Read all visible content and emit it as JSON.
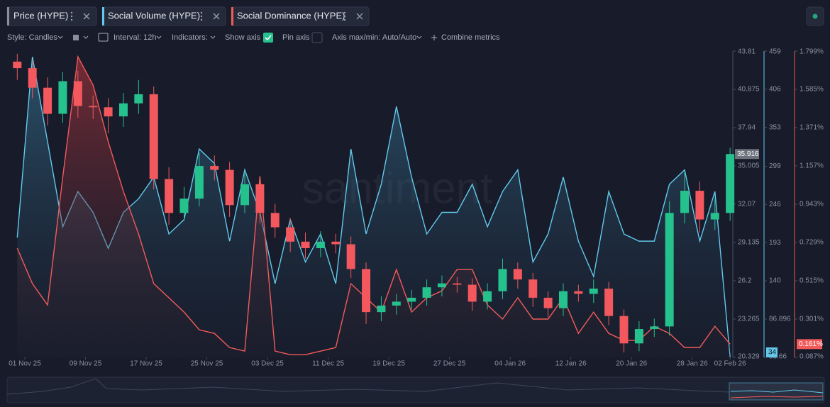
{
  "toolbar": {
    "style": "Style: Candles",
    "interval": "Interval: 12h",
    "indicators": "Indicators:",
    "show_axis": "Show axis",
    "pin_axis": "Pin axis",
    "axis_minmax": "Axis max/min: Auto/Auto",
    "combine": "Combine metrics"
  },
  "watermark": "santiment",
  "chart_data": {
    "type": "combo",
    "x": [
      "2025-10-31",
      "2025-11-02",
      "2025-11-04",
      "2025-11-06",
      "2025-11-08",
      "2025-11-10",
      "2025-11-12",
      "2025-11-14",
      "2025-11-16",
      "2025-11-18",
      "2025-11-20",
      "2025-11-22",
      "2025-11-24",
      "2025-11-26",
      "2025-11-28",
      "2025-11-30",
      "2025-12-02",
      "2025-12-04",
      "2025-12-06",
      "2025-12-08",
      "2025-12-10",
      "2025-12-12",
      "2025-12-14",
      "2025-12-16",
      "2025-12-18",
      "2025-12-20",
      "2025-12-22",
      "2025-12-24",
      "2025-12-26",
      "2025-12-28",
      "2025-12-30",
      "2026-01-01",
      "2026-01-03",
      "2026-01-05",
      "2026-01-07",
      "2026-01-09",
      "2026-01-11",
      "2026-01-13",
      "2026-01-15",
      "2026-01-17",
      "2026-01-19",
      "2026-01-21",
      "2026-01-23",
      "2026-01-25",
      "2026-01-27",
      "2026-01-29",
      "2026-01-31",
      "2026-02-02"
    ],
    "xticks": [
      {
        "value": "2025-11-01",
        "label": "01 Nov 25"
      },
      {
        "value": "2025-11-09",
        "label": "09 Nov 25"
      },
      {
        "value": "2025-11-17",
        "label": "17 Nov 25"
      },
      {
        "value": "2025-11-25",
        "label": "25 Nov 25"
      },
      {
        "value": "2025-12-03",
        "label": "03 Dec 25"
      },
      {
        "value": "2025-12-11",
        "label": "11 Dec 25"
      },
      {
        "value": "2025-12-19",
        "label": "19 Dec 25"
      },
      {
        "value": "2025-12-27",
        "label": "27 Dec 25"
      },
      {
        "value": "2026-01-04",
        "label": "04 Jan 26"
      },
      {
        "value": "2026-01-12",
        "label": "12 Jan 26"
      },
      {
        "value": "2026-01-20",
        "label": "20 Jan 26"
      },
      {
        "value": "2026-01-28",
        "label": "28 Jan 26"
      },
      {
        "value": "2026-02-02",
        "label": "02 Feb 26"
      }
    ],
    "ylim": [
      20.329,
      43.81
    ],
    "yticks": [
      20.329,
      23.265,
      26.2,
      29.135,
      32.07,
      35.005,
      37.94,
      40.875,
      43.81
    ],
    "y2lim": [
      33.66,
      459
    ],
    "y2ticks": [
      33.66,
      86.896,
      140,
      193,
      246,
      299,
      353,
      406,
      459
    ],
    "y3lim": [
      0.087,
      1.799
    ],
    "y3ticks": [
      {
        "value": 0.087,
        "label": "0.087%"
      },
      {
        "value": 0.301,
        "label": "0.301%"
      },
      {
        "value": 0.515,
        "label": "0.515%"
      },
      {
        "value": 0.729,
        "label": "0.729%"
      },
      {
        "value": 0.943,
        "label": "0.943%"
      },
      {
        "value": 1.157,
        "label": "1.157%"
      },
      {
        "value": 1.371,
        "label": "1.371%"
      },
      {
        "value": 1.585,
        "label": "1.585%"
      },
      {
        "value": 1.799,
        "label": "1.799%"
      }
    ],
    "series": [
      {
        "name": "Price (HYPE)",
        "type": "candlestick",
        "color": "#8b8f99",
        "up_color": "#26c28e",
        "down_color": "#f2585d",
        "open": [
          43.0,
          42.5,
          41.0,
          39.0,
          41.5,
          39.6,
          39.5,
          38.8,
          39.8,
          40.5,
          34.0,
          31.4,
          32.5,
          35.0,
          34.7,
          32.0,
          33.6,
          31.4,
          30.3,
          29.2,
          28.7,
          29.2,
          29.0,
          27.1,
          23.8,
          24.3,
          24.6,
          24.9,
          25.7,
          26.0,
          25.9,
          24.6,
          25.4,
          27.1,
          26.3,
          24.9,
          24.1,
          25.4,
          25.2,
          25.6,
          23.5,
          21.4,
          22.5,
          22.7,
          31.4,
          33.1,
          30.9,
          31.4
        ],
        "high": [
          43.6,
          43.1,
          41.8,
          42.2,
          42.3,
          40.4,
          40.2,
          40.6,
          41.6,
          41.1,
          34.9,
          33.4,
          36.0,
          35.8,
          35.3,
          34.4,
          34.2,
          32.1,
          31.0,
          29.9,
          30.0,
          29.8,
          29.6,
          27.6,
          25.0,
          25.2,
          25.5,
          26.3,
          26.6,
          26.5,
          26.4,
          26.0,
          27.9,
          27.6,
          26.8,
          25.4,
          26.0,
          25.9,
          26.3,
          26.1,
          24.0,
          23.1,
          23.3,
          32.3,
          34.5,
          33.8,
          32.5,
          36.4
        ],
        "low": [
          41.6,
          40.2,
          38.1,
          38.3,
          38.7,
          38.6,
          37.5,
          38.0,
          39.0,
          33.2,
          30.5,
          30.8,
          31.9,
          33.9,
          31.1,
          31.4,
          30.6,
          29.5,
          28.4,
          27.9,
          28.0,
          28.3,
          26.4,
          22.9,
          23.1,
          23.6,
          24.0,
          24.3,
          25.0,
          25.3,
          23.9,
          24.0,
          24.8,
          25.6,
          24.2,
          23.4,
          23.5,
          24.6,
          24.5,
          22.8,
          20.7,
          20.8,
          21.9,
          22.0,
          30.6,
          29.9,
          30.1,
          30.8
        ],
        "close": [
          42.5,
          41.0,
          39.0,
          41.5,
          39.6,
          39.5,
          38.8,
          39.8,
          40.5,
          34.0,
          31.4,
          32.5,
          35.0,
          34.7,
          32.0,
          33.6,
          31.4,
          30.3,
          29.2,
          28.7,
          29.2,
          29.0,
          27.1,
          23.8,
          24.3,
          24.6,
          24.9,
          25.7,
          26.0,
          25.9,
          24.6,
          25.4,
          27.1,
          26.3,
          24.9,
          24.1,
          25.4,
          25.2,
          25.6,
          23.5,
          21.4,
          22.5,
          22.7,
          31.4,
          33.1,
          30.9,
          31.4,
          35.916
        ]
      },
      {
        "name": "Social Volume (HYPE)",
        "type": "area",
        "axis": "y2",
        "color": "#62c9ec",
        "values": [
          200,
          451,
          333,
          215,
          264,
          235,
          185,
          235,
          254,
          284,
          205,
          225,
          323,
          303,
          195,
          294,
          235,
          136,
          225,
          166,
          205,
          136,
          323,
          205,
          274,
          382,
          284,
          205,
          235,
          235,
          274,
          215,
          264,
          294,
          166,
          205,
          284,
          195,
          146,
          264,
          205,
          195,
          195,
          274,
          294,
          195,
          264,
          34
        ]
      },
      {
        "name": "Social Dominance (HYPE)",
        "type": "area",
        "axis": "y3",
        "color": "#f25a5a",
        "values": [
          0.697,
          0.499,
          0.38,
          1.094,
          1.767,
          1.609,
          1.292,
          1.014,
          0.776,
          0.499,
          0.42,
          0.34,
          0.241,
          0.221,
          0.142,
          0.122,
          1.1,
          0.122,
          0.102,
          0.102,
          0.122,
          0.142,
          0.499,
          0.42,
          0.34,
          0.578,
          0.34,
          0.42,
          0.459,
          0.578,
          0.578,
          0.38,
          0.301,
          0.42,
          0.301,
          0.301,
          0.42,
          0.221,
          0.34,
          0.221,
          0.182,
          0.182,
          0.261,
          0.221,
          0.142,
          0.142,
          0.261,
          0.161
        ],
        "value_labels": [
          null,
          null,
          null,
          null,
          null,
          null,
          null,
          null,
          null,
          null,
          null,
          null,
          null,
          null,
          null,
          null,
          null,
          null,
          null,
          null,
          null,
          null,
          null,
          null,
          null,
          null,
          null,
          null,
          null,
          null,
          null,
          null,
          null,
          null,
          null,
          null,
          null,
          null,
          null,
          null,
          null,
          null,
          null,
          null,
          null,
          null,
          null,
          "0.161%"
        ]
      }
    ]
  }
}
